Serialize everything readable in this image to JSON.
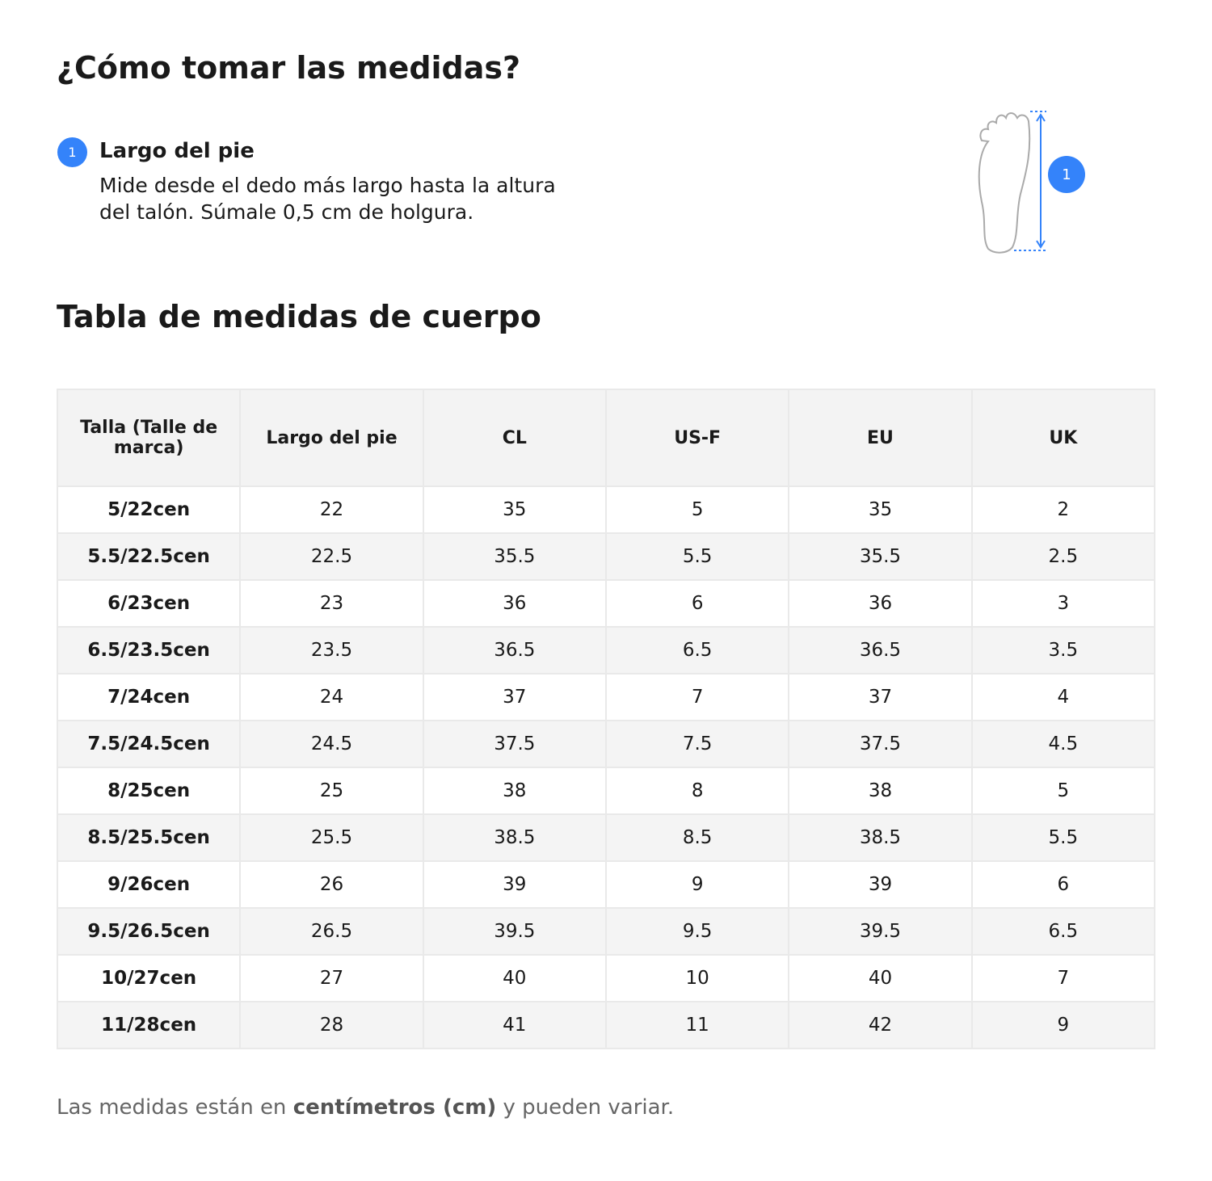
{
  "header": {
    "title": "¿Cómo tomar las medidas?"
  },
  "step": {
    "number": "1",
    "title": "Largo del pie",
    "description": "Mide desde el dedo más largo hasta la altura del talón. Súmale 0,5 cm de holgura."
  },
  "figure": {
    "badge": "1"
  },
  "table": {
    "title": "Tabla de medidas de cuerpo",
    "headers": [
      "Talla (Talle de marca)",
      "Largo del pie",
      "CL",
      "US-F",
      "EU",
      "UK"
    ],
    "rows": [
      [
        "5/22cen",
        "22",
        "35",
        "5",
        "35",
        "2"
      ],
      [
        "5.5/22.5cen",
        "22.5",
        "35.5",
        "5.5",
        "35.5",
        "2.5"
      ],
      [
        "6/23cen",
        "23",
        "36",
        "6",
        "36",
        "3"
      ],
      [
        "6.5/23.5cen",
        "23.5",
        "36.5",
        "6.5",
        "36.5",
        "3.5"
      ],
      [
        "7/24cen",
        "24",
        "37",
        "7",
        "37",
        "4"
      ],
      [
        "7.5/24.5cen",
        "24.5",
        "37.5",
        "7.5",
        "37.5",
        "4.5"
      ],
      [
        "8/25cen",
        "25",
        "38",
        "8",
        "38",
        "5"
      ],
      [
        "8.5/25.5cen",
        "25.5",
        "38.5",
        "8.5",
        "38.5",
        "5.5"
      ],
      [
        "9/26cen",
        "26",
        "39",
        "9",
        "39",
        "6"
      ],
      [
        "9.5/26.5cen",
        "26.5",
        "39.5",
        "9.5",
        "39.5",
        "6.5"
      ],
      [
        "10/27cen",
        "27",
        "40",
        "10",
        "40",
        "7"
      ],
      [
        "11/28cen",
        "28",
        "41",
        "11",
        "42",
        "9"
      ]
    ]
  },
  "footer": {
    "before": "Las medidas están en ",
    "bold": "centímetros (cm)",
    "after": " y pueden variar."
  }
}
